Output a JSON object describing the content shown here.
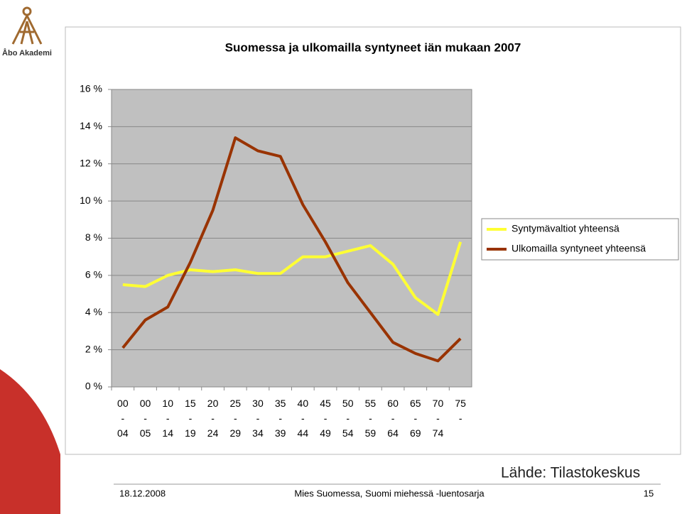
{
  "logo": {
    "text": "Åbo Akademi"
  },
  "source": "Lähde: Tilastokeskus",
  "footer": {
    "date": "18.12.2008",
    "title": "Mies Suomessa, Suomi miehessä -luentosarja",
    "page": "15"
  },
  "chart_data": {
    "type": "line",
    "title": "Suomessa ja ulkomailla syntyneet iän mukaan 2007",
    "categories": [
      "00\n-\n04",
      "00\n-\n05",
      "10\n-\n14",
      "15\n-\n19",
      "20\n-\n24",
      "25\n-\n29",
      "30\n-\n34",
      "35\n-\n39",
      "40\n-\n44",
      "45\n-\n49",
      "50\n-\n54",
      "55\n-\n59",
      "60\n-\n64",
      "65\n-\n69",
      "70\n-\n74",
      "75\n-"
    ],
    "series": [
      {
        "name": "Syntymävaltiot yhteensä",
        "color": "#ffff33",
        "values": [
          5.5,
          5.4,
          6.0,
          6.3,
          6.2,
          6.3,
          6.1,
          6.1,
          7.0,
          7.0,
          7.3,
          7.6,
          6.6,
          4.8,
          3.9,
          7.8
        ]
      },
      {
        "name": "Ulkomailla syntyneet yhteensä",
        "color": "#993300",
        "values": [
          2.1,
          3.6,
          4.3,
          6.7,
          9.5,
          13.4,
          12.7,
          12.4,
          9.8,
          7.8,
          5.6,
          4.0,
          2.4,
          1.8,
          1.4,
          2.6
        ]
      }
    ],
    "ylim": [
      0,
      16
    ],
    "yticks": [
      {
        "value": 0,
        "label": "0 %"
      },
      {
        "value": 2,
        "label": "2 %"
      },
      {
        "value": 4,
        "label": "4 %"
      },
      {
        "value": 6,
        "label": "6 %"
      },
      {
        "value": 8,
        "label": "8 %"
      },
      {
        "value": 10,
        "label": "10 %"
      },
      {
        "value": 12,
        "label": "12 %"
      },
      {
        "value": 14,
        "label": "14 %"
      },
      {
        "value": 16,
        "label": "16 %"
      }
    ],
    "grid": true,
    "legend": "right"
  }
}
